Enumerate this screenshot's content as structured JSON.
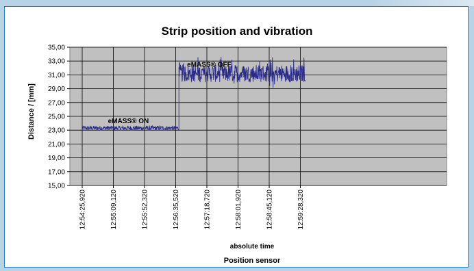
{
  "chart_data": {
    "type": "line",
    "title": "Strip position and vibration",
    "xlabel": "absolute time",
    "subtitle": "Position sensor",
    "ylabel": "Distance / [mm]",
    "ylim": [
      15,
      35
    ],
    "yticks": [
      "15,00",
      "17,00",
      "19,00",
      "21,00",
      "23,00",
      "25,00",
      "27,00",
      "29,00",
      "31,00",
      "33,00",
      "35,00"
    ],
    "xticks": [
      "12:54:25,920",
      "12:55:09,120",
      "12:55:52,320",
      "12:56:35,520",
      "12:57:18,720",
      "12:58:01,920",
      "12:58:45,120",
      "12:59:28,320"
    ],
    "grid": true,
    "line_color": "#2b2b8c",
    "plot_bg": "#c0c0c0",
    "annotations": [
      {
        "text": "eMASS® ON",
        "x": "12:55:30",
        "y": 24.0
      },
      {
        "text": "eMASS® OFF",
        "x": "12:57:22",
        "y": 32.2
      }
    ],
    "series": [
      {
        "segments": [
          {
            "x_start": "12:54:25,920",
            "x_end": "12:56:40",
            "mean": 23.3,
            "range": [
              22.7,
              23.9
            ]
          },
          {
            "x_start": "12:56:40",
            "x_end": "12:59:35",
            "mean": 31.2,
            "range": [
              28.5,
              33.6
            ]
          }
        ]
      }
    ]
  }
}
